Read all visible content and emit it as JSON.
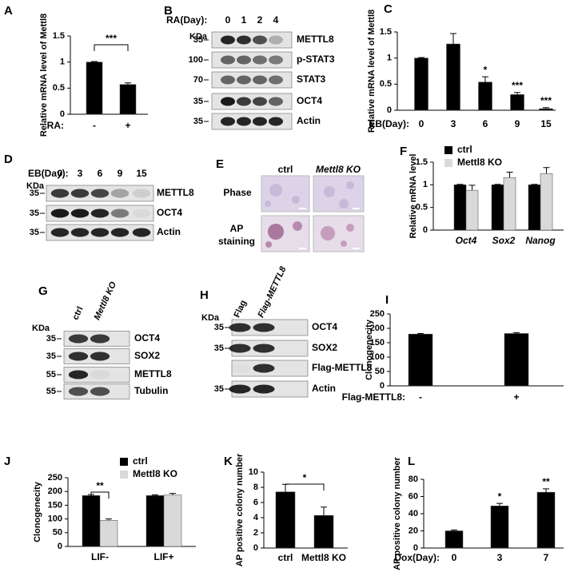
{
  "chart_data": [
    {
      "type": "bar",
      "panel": "A",
      "ylabel": "Relative mRNA level of Mettl8",
      "xlabel": "RA:",
      "categories": [
        "-",
        "+"
      ],
      "values": [
        1,
        0.57
      ],
      "errors": [
        0.01,
        0.03
      ],
      "color": "#000000",
      "ylim": [
        0,
        1.5
      ],
      "yticks": [
        0,
        0.5,
        1,
        1.5
      ],
      "annotation": "***"
    },
    {
      "type": "bar",
      "panel": "C",
      "ylabel": "Relative mRNA level of Mettl8",
      "xlabel": "EB(Day):",
      "categories": [
        "0",
        "3",
        "6",
        "9",
        "15"
      ],
      "values": [
        1,
        1.27,
        0.54,
        0.3,
        0.03
      ],
      "errors": [
        0.01,
        0.2,
        0.1,
        0.04,
        0.02
      ],
      "significance": [
        null,
        null,
        "*",
        "***",
        "***"
      ],
      "color": "#000000",
      "ylim": [
        0,
        1.5
      ],
      "yticks": [
        0,
        0.5,
        1,
        1.5
      ]
    },
    {
      "type": "bar",
      "panel": "F",
      "ylabel": "Relative mRNA level",
      "categories": [
        "Oct4",
        "Sox2",
        "Nanog"
      ],
      "series": [
        {
          "name": "ctrl",
          "color": "#000000",
          "values": [
            1,
            1,
            1
          ],
          "errors": [
            0.01,
            0.01,
            0.01
          ]
        },
        {
          "name": "Mettl8 KO",
          "color": "#d9d9d9",
          "values": [
            0.88,
            1.16,
            1.25
          ],
          "errors": [
            0.11,
            0.12,
            0.13
          ]
        }
      ],
      "ylim": [
        0,
        1.5
      ],
      "yticks": [
        0,
        0.5,
        1,
        1.5
      ]
    },
    {
      "type": "bar",
      "panel": "I",
      "ylabel": "Clonogenecity",
      "xlabel": "Flag-METTL8:",
      "categories": [
        "-",
        "+"
      ],
      "values": [
        180,
        182
      ],
      "errors": [
        2,
        3
      ],
      "color": "#000000",
      "ylim": [
        0,
        250
      ],
      "yticks": [
        0,
        50,
        100,
        150,
        200,
        250
      ]
    },
    {
      "type": "bar",
      "panel": "J",
      "ylabel": "Clonogenecity",
      "categories": [
        "LIF-",
        "LIF+"
      ],
      "series": [
        {
          "name": "ctrl",
          "color": "#000000",
          "values": [
            185,
            185
          ],
          "errors": [
            4,
            3
          ]
        },
        {
          "name": "Mettl8 KO",
          "color": "#d9d9d9",
          "values": [
            95,
            187
          ],
          "errors": [
            5,
            6
          ]
        }
      ],
      "ylim": [
        0,
        250
      ],
      "yticks": [
        0,
        50,
        100,
        150,
        200,
        250
      ],
      "annotation": "**"
    },
    {
      "type": "bar",
      "panel": "K",
      "ylabel": "AP positive colony number",
      "categories": [
        "ctrl",
        "Mettl8 KO"
      ],
      "values": [
        7.4,
        4.3
      ],
      "errors": [
        1,
        1.1
      ],
      "color": "#000000",
      "ylim": [
        0,
        10
      ],
      "yticks": [
        0,
        2,
        4,
        6,
        8,
        10
      ],
      "annotation": "*"
    },
    {
      "type": "bar",
      "panel": "L",
      "ylabel": "AP positive colony number",
      "xlabel": "Dox(Day):",
      "categories": [
        "0",
        "3",
        "7"
      ],
      "values": [
        20,
        49,
        65
      ],
      "errors": [
        1,
        3,
        4
      ],
      "significance": [
        null,
        "*",
        "**"
      ],
      "color": "#000000",
      "ylim": [
        0,
        80
      ],
      "yticks": [
        0,
        20,
        40,
        60,
        80
      ]
    }
  ],
  "blots": [
    {
      "panel": "B",
      "header": "RA(Day):",
      "lanes": [
        "0",
        "1",
        "2",
        "4"
      ],
      "kda_label": "KDa",
      "rows": [
        {
          "name": "METTL8",
          "kda": "35"
        },
        {
          "name": "p-STAT3",
          "kda": "100"
        },
        {
          "name": "STAT3",
          "kda": "70"
        },
        {
          "name": "OCT4",
          "kda": "35"
        },
        {
          "name": "Actin",
          "kda": "35"
        }
      ]
    },
    {
      "panel": "D",
      "header": "EB(Day):",
      "lanes": [
        "0",
        "3",
        "6",
        "9",
        "15"
      ],
      "kda_label": "KDa",
      "rows": [
        {
          "name": "METTL8",
          "kda": "35"
        },
        {
          "name": "OCT4",
          "kda": "35"
        },
        {
          "name": "Actin",
          "kda": "35"
        }
      ]
    },
    {
      "panel": "G",
      "lanes": [
        "ctrl",
        "Mettl8 KO"
      ],
      "kda_label": "KDa",
      "rows": [
        {
          "name": "OCT4",
          "kda": "35"
        },
        {
          "name": "SOX2",
          "kda": "35"
        },
        {
          "name": "METTL8",
          "kda": "55"
        },
        {
          "name": "Tubulin",
          "kda": "55"
        }
      ]
    },
    {
      "panel": "H",
      "lanes": [
        "Flag",
        "Flag-METTL8"
      ],
      "kda_label": "KDa",
      "rows": [
        {
          "name": "OCT4",
          "kda": "35"
        },
        {
          "name": "SOX2",
          "kda": "35"
        },
        {
          "name": "Flag-METTL8",
          "kda": null
        },
        {
          "name": "Actin",
          "kda": "35"
        }
      ]
    }
  ],
  "staining": {
    "panel": "E",
    "columns": [
      "ctrl",
      "Mettl8 KO"
    ],
    "rows": [
      "Phase",
      "AP staining"
    ]
  }
}
